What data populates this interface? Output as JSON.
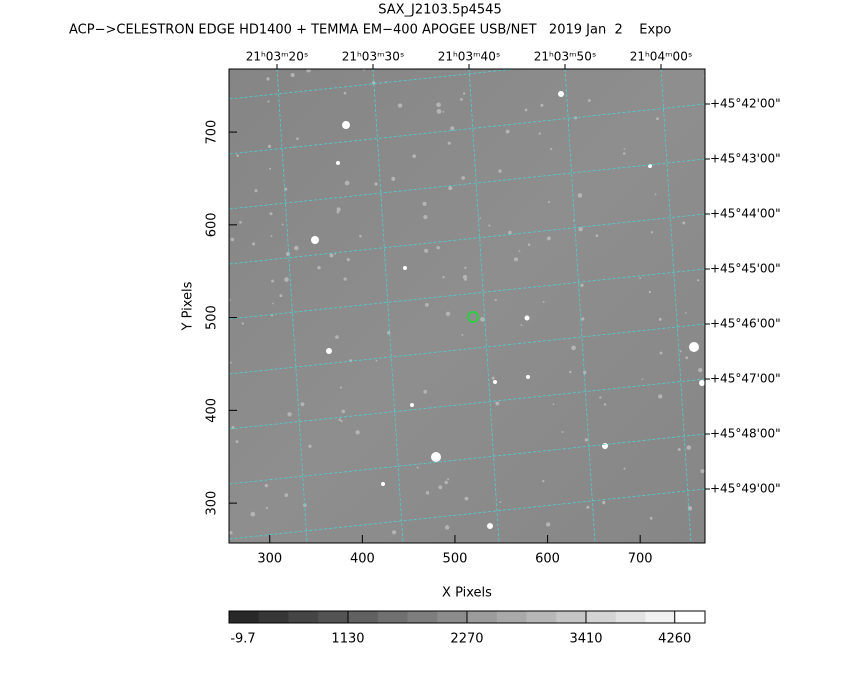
{
  "chart_data": {
    "type": "image",
    "title": "SAX_J2103.5p4545",
    "subtitle": "ACP−>CELESTRON EDGE HD1400 + TEMMA EM−400 APOGEE USB/NET   2019 Jan  2    Expo",
    "x_label": "X Pixels",
    "y_label": "Y Pixels",
    "xlim": [
      256,
      770
    ],
    "ylim": [
      257,
      768
    ],
    "xticks": [
      300,
      400,
      500,
      600,
      700
    ],
    "yticks": [
      300,
      400,
      500,
      600,
      700
    ],
    "ra_labels": [
      "21ʰ03ᵐ20ˢ",
      "21ʰ03ᵐ30ˢ",
      "21ʰ03ᵐ40ˢ",
      "21ʰ03ᵐ50ˢ",
      "21ʰ04ᵐ00ˢ"
    ],
    "dec_labels": [
      "+45°42'00\"",
      "+45°43'00\"",
      "+45°44'00\"",
      "+45°45'00\"",
      "+45°46'00\"",
      "+45°47'00\"",
      "+45°48'00\"",
      "+45°49'00\""
    ],
    "colorbar_lim": [
      -9.7,
      4550
    ],
    "colorbar_ticks": [
      -9.7,
      1130,
      2270,
      3410,
      4260
    ],
    "grid_color": "#4fd0d0"
  }
}
